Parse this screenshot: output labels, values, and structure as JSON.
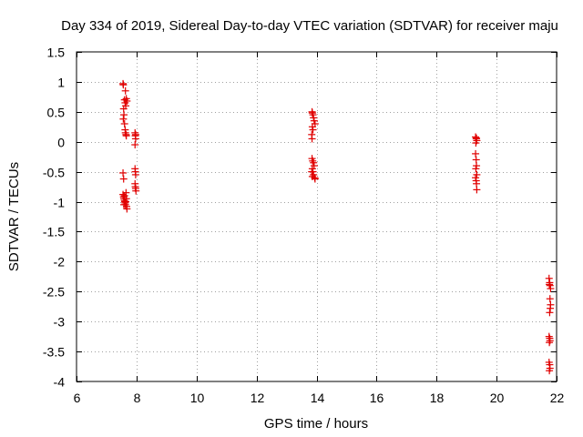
{
  "chart_data": {
    "type": "scatter",
    "title": "Day 334 of 2019, Sidereal Day-to-day VTEC variation (SDTVAR) for receiver maju",
    "xlabel": "GPS time / hours",
    "ylabel": "SDTVAR / TECUs",
    "xlim": [
      6,
      22
    ],
    "ylim": [
      -4,
      1.5
    ],
    "xticks": [
      6,
      8,
      10,
      12,
      14,
      16,
      18,
      20,
      22
    ],
    "yticks": [
      1.5,
      1,
      0.5,
      0,
      -0.5,
      -1,
      -1.5,
      -2,
      -2.5,
      -3,
      -3.5,
      -4
    ],
    "xtick_labels": [
      "6",
      "8",
      "10",
      "12",
      "14",
      "16",
      "18",
      "20",
      "22"
    ],
    "ytick_labels": [
      "1.5",
      "1",
      "0.5",
      "0",
      "-0.5",
      "-1",
      "-1.5",
      "-2",
      "-2.5",
      "-3",
      "-3.5",
      "-4"
    ],
    "grid": true,
    "marker": "+",
    "series": [
      {
        "name": "SDTVAR",
        "color": "#e00000",
        "points": [
          [
            7.55,
            0.97
          ],
          [
            7.56,
            0.95
          ],
          [
            7.57,
            0.55
          ],
          [
            7.58,
            0.45
          ],
          [
            7.56,
            0.38
          ],
          [
            7.6,
            0.3
          ],
          [
            7.62,
            0.2
          ],
          [
            7.63,
            0.15
          ],
          [
            7.65,
            0.12
          ],
          [
            7.66,
            0.1
          ],
          [
            7.6,
            0.7
          ],
          [
            7.62,
            0.65
          ],
          [
            7.64,
            0.6
          ],
          [
            7.66,
            0.72
          ],
          [
            7.68,
            0.68
          ],
          [
            7.63,
            0.85
          ],
          [
            7.55,
            -0.52
          ],
          [
            7.57,
            -0.62
          ],
          [
            7.55,
            -0.88
          ],
          [
            7.57,
            -0.92
          ],
          [
            7.58,
            -0.95
          ],
          [
            7.6,
            -0.98
          ],
          [
            7.61,
            -1.0
          ],
          [
            7.62,
            -1.02
          ],
          [
            7.63,
            -1.05
          ],
          [
            7.64,
            -1.0
          ],
          [
            7.66,
            -0.95
          ],
          [
            7.67,
            -1.08
          ],
          [
            7.68,
            -1.12
          ],
          [
            7.58,
            -1.05
          ],
          [
            7.6,
            -0.9
          ],
          [
            7.65,
            -0.85
          ],
          [
            7.95,
            0.15
          ],
          [
            7.96,
            0.1
          ],
          [
            7.97,
            0.05
          ],
          [
            7.95,
            -0.05
          ],
          [
            7.97,
            0.12
          ],
          [
            7.95,
            -0.45
          ],
          [
            7.96,
            -0.5
          ],
          [
            7.97,
            -0.55
          ],
          [
            7.95,
            -0.7
          ],
          [
            7.96,
            -0.75
          ],
          [
            7.97,
            -0.78
          ],
          [
            7.98,
            -0.82
          ],
          [
            13.85,
            0.5
          ],
          [
            13.86,
            0.48
          ],
          [
            13.88,
            0.45
          ],
          [
            13.9,
            0.4
          ],
          [
            13.92,
            0.35
          ],
          [
            13.95,
            0.3
          ],
          [
            13.86,
            0.25
          ],
          [
            13.88,
            0.2
          ],
          [
            13.84,
            0.12
          ],
          [
            13.85,
            0.05
          ],
          [
            13.85,
            -0.28
          ],
          [
            13.87,
            -0.32
          ],
          [
            13.9,
            -0.35
          ],
          [
            13.92,
            -0.4
          ],
          [
            13.86,
            -0.45
          ],
          [
            13.88,
            -0.5
          ],
          [
            13.9,
            -0.55
          ],
          [
            13.94,
            -0.6
          ],
          [
            13.95,
            -0.62
          ],
          [
            13.84,
            -0.5
          ],
          [
            13.86,
            -0.58
          ],
          [
            19.3,
            0.08
          ],
          [
            19.32,
            0.05
          ],
          [
            19.34,
            0.02
          ],
          [
            19.31,
            -0.02
          ],
          [
            19.33,
            0.06
          ],
          [
            19.3,
            -0.2
          ],
          [
            19.32,
            -0.3
          ],
          [
            19.33,
            -0.4
          ],
          [
            19.31,
            -0.45
          ],
          [
            19.34,
            -0.55
          ],
          [
            19.3,
            -0.6
          ],
          [
            19.32,
            -0.65
          ],
          [
            19.33,
            -0.7
          ],
          [
            19.34,
            -0.8
          ],
          [
            21.75,
            -2.28
          ],
          [
            21.77,
            -2.35
          ],
          [
            21.78,
            -2.4
          ],
          [
            21.8,
            -2.45
          ],
          [
            21.76,
            -2.38
          ],
          [
            21.78,
            -2.62
          ],
          [
            21.8,
            -2.72
          ],
          [
            21.79,
            -2.78
          ],
          [
            21.77,
            -2.85
          ],
          [
            21.75,
            -3.25
          ],
          [
            21.77,
            -3.28
          ],
          [
            21.78,
            -3.32
          ],
          [
            21.76,
            -3.35
          ],
          [
            21.75,
            -3.68
          ],
          [
            21.77,
            -3.72
          ],
          [
            21.78,
            -3.78
          ],
          [
            21.76,
            -3.82
          ]
        ]
      }
    ]
  }
}
